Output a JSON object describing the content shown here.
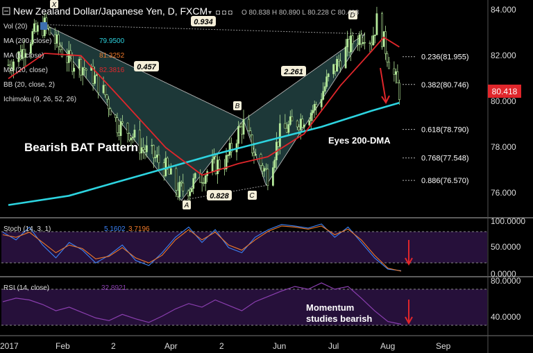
{
  "header": {
    "title": "New Zealand Dollar/Japanese Yen, D, FXCM",
    "ohlc": "O 80.838 H 80.890 L 80.228 C 80.418"
  },
  "indicators": {
    "vol": "Vol (20)",
    "ma200": "MA (200, close)",
    "ma200_val": "79.9500",
    "ma5": "MA (5, close)",
    "ma5_val": "81.3252",
    "ma20": "MA (20, close)",
    "ma20_val": "82.3816",
    "bb": "BB (20, close, 2)",
    "ichimoku": "Ichimoku (9, 26, 52, 26)",
    "stoch": "Stoch (14, 3, 1)",
    "stoch_k": "5.1602",
    "stoch_d": "3.7196",
    "rsi": "RSI (14, close)",
    "rsi_val": "32.8921"
  },
  "price_tag": "80.418",
  "annotations": {
    "pattern": "Bearish BAT Pattern",
    "dma": "Eyes 200-DMA",
    "momentum_line1": "Momentum",
    "momentum_line2": "studies bearish"
  },
  "pattern_points": [
    "X",
    "A",
    "B",
    "C",
    "D"
  ],
  "pattern_ratios": [
    "0.934",
    "0.457",
    "0.828",
    "2.261"
  ],
  "fib_levels": [
    {
      "label": "0.236(81.955)",
      "value": 81.955
    },
    {
      "label": "0.382(80.746)",
      "value": 80.746
    },
    {
      "label": "0.618(78.790)",
      "value": 78.79
    },
    {
      "label": "0.768(77.548)",
      "value": 77.548
    },
    {
      "label": "0.886(76.570)",
      "value": 76.57
    }
  ],
  "colors": {
    "background": "#000000",
    "candle": "#b4e89a",
    "ma200": "#2dd4e0",
    "ma20": "#e0262b",
    "pattern_fill": "#1f3b3b",
    "arrow": "#e0262b",
    "stoch_k": "#3b82f6",
    "stoch_d": "#f07a2a",
    "rsi": "#8b3fb0",
    "panel_fill": "#26103a",
    "price_tag_bg": "#e0262b"
  },
  "chart_data": [
    {
      "type": "candlestick",
      "title": "New Zealand Dollar/Japanese Yen, D, FXCM",
      "x_ticks": [
        "2017",
        "Feb",
        "2",
        "Apr",
        "2",
        "Jun",
        "Jul",
        "Aug",
        "Sep"
      ],
      "y_ticks": [
        "84.000",
        "82.000",
        "80.000",
        "78.000",
        "76.000"
      ],
      "ylim": [
        74.4,
        84.5
      ],
      "pattern": {
        "X": 83.35,
        "A": 75.7,
        "B": 79.2,
        "C": 76.35,
        "D": 82.95
      },
      "close_path": [
        {
          "x": "2017-01-03",
          "y": 81.6
        },
        {
          "x": "2017-01-10",
          "y": 82.1
        },
        {
          "x": "2017-01-17",
          "y": 82.9
        },
        {
          "x": "2017-01-24",
          "y": 83.3
        },
        {
          "x": "2017-01-31",
          "y": 82.5
        },
        {
          "x": "2017-02-07",
          "y": 81.8
        },
        {
          "x": "2017-02-14",
          "y": 81.6
        },
        {
          "x": "2017-02-21",
          "y": 81.1
        },
        {
          "x": "2017-02-28",
          "y": 80.3
        },
        {
          "x": "2017-03-07",
          "y": 79.0
        },
        {
          "x": "2017-03-14",
          "y": 78.7
        },
        {
          "x": "2017-03-21",
          "y": 78.0
        },
        {
          "x": "2017-03-28",
          "y": 77.6
        },
        {
          "x": "2017-04-04",
          "y": 77.1
        },
        {
          "x": "2017-04-11",
          "y": 76.1
        },
        {
          "x": "2017-04-18",
          "y": 76.3
        },
        {
          "x": "2017-04-25",
          "y": 76.8
        },
        {
          "x": "2017-05-02",
          "y": 77.2
        },
        {
          "x": "2017-05-09",
          "y": 77.4
        },
        {
          "x": "2017-05-16",
          "y": 78.7
        },
        {
          "x": "2017-05-19",
          "y": 79.0
        },
        {
          "x": "2017-05-26",
          "y": 77.6
        },
        {
          "x": "2017-06-02",
          "y": 76.8
        },
        {
          "x": "2017-06-09",
          "y": 78.6
        },
        {
          "x": "2017-06-16",
          "y": 79.0
        },
        {
          "x": "2017-06-23",
          "y": 79.3
        },
        {
          "x": "2017-06-30",
          "y": 79.8
        },
        {
          "x": "2017-07-07",
          "y": 81.0
        },
        {
          "x": "2017-07-14",
          "y": 81.9
        },
        {
          "x": "2017-07-21",
          "y": 82.6
        },
        {
          "x": "2017-07-28",
          "y": 83.0
        },
        {
          "x": "2017-08-01",
          "y": 82.7
        },
        {
          "x": "2017-08-04",
          "y": 83.5
        },
        {
          "x": "2017-08-08",
          "y": 82.6
        },
        {
          "x": "2017-08-11",
          "y": 81.8
        },
        {
          "x": "2017-08-15",
          "y": 80.9
        },
        {
          "x": "2017-08-17",
          "y": 80.418
        }
      ],
      "ma200": [
        {
          "x": "2017-01-03",
          "y": 75.5
        },
        {
          "x": "2017-02-07",
          "y": 75.9
        },
        {
          "x": "2017-03-07",
          "y": 76.5
        },
        {
          "x": "2017-04-04",
          "y": 77.1
        },
        {
          "x": "2017-05-02",
          "y": 77.7
        },
        {
          "x": "2017-06-02",
          "y": 78.3
        },
        {
          "x": "2017-07-03",
          "y": 78.9
        },
        {
          "x": "2017-08-01",
          "y": 79.6
        },
        {
          "x": "2017-08-17",
          "y": 79.95
        }
      ],
      "ma20": [
        {
          "x": "2017-01-03",
          "y": 81.0
        },
        {
          "x": "2017-01-24",
          "y": 82.1
        },
        {
          "x": "2017-02-14",
          "y": 82.0
        },
        {
          "x": "2017-03-07",
          "y": 80.3
        },
        {
          "x": "2017-04-04",
          "y": 78.0
        },
        {
          "x": "2017-04-25",
          "y": 76.8
        },
        {
          "x": "2017-05-16",
          "y": 77.3
        },
        {
          "x": "2017-06-02",
          "y": 77.6
        },
        {
          "x": "2017-06-23",
          "y": 78.6
        },
        {
          "x": "2017-07-14",
          "y": 80.7
        },
        {
          "x": "2017-08-01",
          "y": 82.2
        },
        {
          "x": "2017-08-08",
          "y": 82.8
        },
        {
          "x": "2017-08-17",
          "y": 82.38
        }
      ]
    },
    {
      "type": "line",
      "title": "Stoch (14, 3, 1)",
      "y_ticks": [
        "100.0000",
        "50.0000",
        "0.0000"
      ],
      "ylim": [
        0,
        100
      ],
      "series": [
        {
          "name": "%K",
          "values": [
            80,
            65,
            90,
            55,
            30,
            60,
            45,
            20,
            35,
            55,
            25,
            15,
            40,
            70,
            90,
            60,
            85,
            50,
            40,
            70,
            85,
            95,
            92,
            88,
            96,
            70,
            90,
            60,
            30,
            8,
            5
          ]
        },
        {
          "name": "%D",
          "values": [
            75,
            70,
            80,
            60,
            40,
            55,
            48,
            28,
            33,
            50,
            30,
            20,
            35,
            65,
            85,
            65,
            80,
            55,
            45,
            65,
            82,
            92,
            90,
            86,
            92,
            75,
            86,
            65,
            35,
            10,
            4
          ]
        }
      ]
    },
    {
      "type": "line",
      "title": "RSI (14, close)",
      "y_ticks": [
        "80.0000",
        "40.0000"
      ],
      "ylim": [
        28,
        82
      ],
      "series": [
        {
          "name": "RSI",
          "values": [
            58,
            62,
            60,
            55,
            48,
            52,
            46,
            40,
            37,
            44,
            39,
            35,
            42,
            50,
            56,
            52,
            60,
            54,
            48,
            58,
            64,
            70,
            75,
            72,
            79,
            72,
            75,
            62,
            48,
            36,
            33
          ]
        }
      ]
    }
  ]
}
